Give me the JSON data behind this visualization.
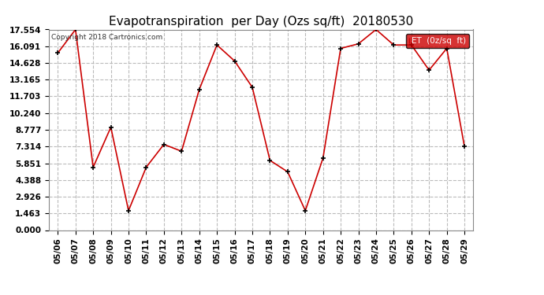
{
  "title": "Evapotranspiration  per Day (Ozs sq/ft)  20180530",
  "copyright": "Copyright 2018 Cartronics.com",
  "legend_label": "ET  (0z/sq  ft)",
  "x_labels": [
    "05/06",
    "05/07",
    "05/08",
    "05/09",
    "05/10",
    "05/11",
    "05/12",
    "05/13",
    "05/14",
    "05/15",
    "05/16",
    "05/17",
    "05/18",
    "05/19",
    "05/20",
    "05/21",
    "05/22",
    "05/23",
    "05/24",
    "05/25",
    "05/26",
    "05/27",
    "05/28",
    "05/29"
  ],
  "y_values": [
    15.5,
    17.554,
    5.5,
    9.0,
    1.7,
    5.5,
    7.5,
    6.9,
    12.3,
    16.2,
    14.8,
    12.5,
    6.1,
    5.1,
    1.7,
    6.3,
    15.9,
    16.3,
    17.554,
    16.2,
    16.2,
    14.0,
    15.9,
    7.314
  ],
  "y_ticks": [
    0.0,
    1.463,
    2.926,
    4.388,
    5.851,
    7.314,
    8.777,
    10.24,
    11.703,
    13.165,
    14.628,
    16.091,
    17.554
  ],
  "line_color": "#cc0000",
  "marker_color": "#000000",
  "bg_color": "#ffffff",
  "grid_color": "#bbbbbb",
  "title_fontsize": 11,
  "legend_bg": "#cc0000",
  "legend_text_color": "#ffffff"
}
